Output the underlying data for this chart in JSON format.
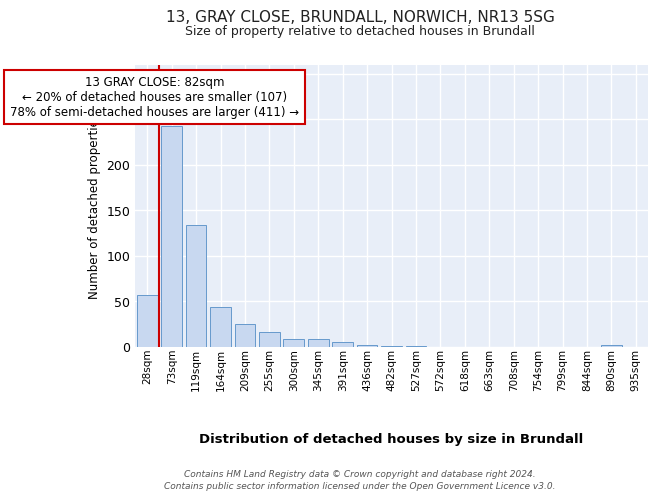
{
  "title_line1": "13, GRAY CLOSE, BRUNDALL, NORWICH, NR13 5SG",
  "title_line2": "Size of property relative to detached houses in Brundall",
  "xlabel": "Distribution of detached houses by size in Brundall",
  "ylabel": "Number of detached properties",
  "categories": [
    "28sqm",
    "73sqm",
    "119sqm",
    "164sqm",
    "209sqm",
    "255sqm",
    "300sqm",
    "345sqm",
    "391sqm",
    "436sqm",
    "482sqm",
    "527sqm",
    "572sqm",
    "618sqm",
    "663sqm",
    "708sqm",
    "754sqm",
    "799sqm",
    "844sqm",
    "890sqm",
    "935sqm"
  ],
  "values": [
    57,
    243,
    134,
    44,
    25,
    17,
    9,
    9,
    5,
    2,
    1,
    1,
    0,
    0,
    0,
    0,
    0,
    0,
    0,
    2,
    0
  ],
  "bar_color": "#c8d8f0",
  "bar_edge_color": "#6699cc",
  "annotation_line1": "13 GRAY CLOSE: 82sqm",
  "annotation_line2": "← 20% of detached houses are smaller (107)",
  "annotation_line3": "78% of semi-detached houses are larger (411) →",
  "redline_x": 0.5,
  "redline_color": "#cc0000",
  "ylim": [
    0,
    310
  ],
  "yticks": [
    0,
    50,
    100,
    150,
    200,
    250,
    300
  ],
  "footer_line1": "Contains HM Land Registry data © Crown copyright and database right 2024.",
  "footer_line2": "Contains public sector information licensed under the Open Government Licence v3.0.",
  "background_color": "#ffffff",
  "plot_bg_color": "#e8eef8"
}
